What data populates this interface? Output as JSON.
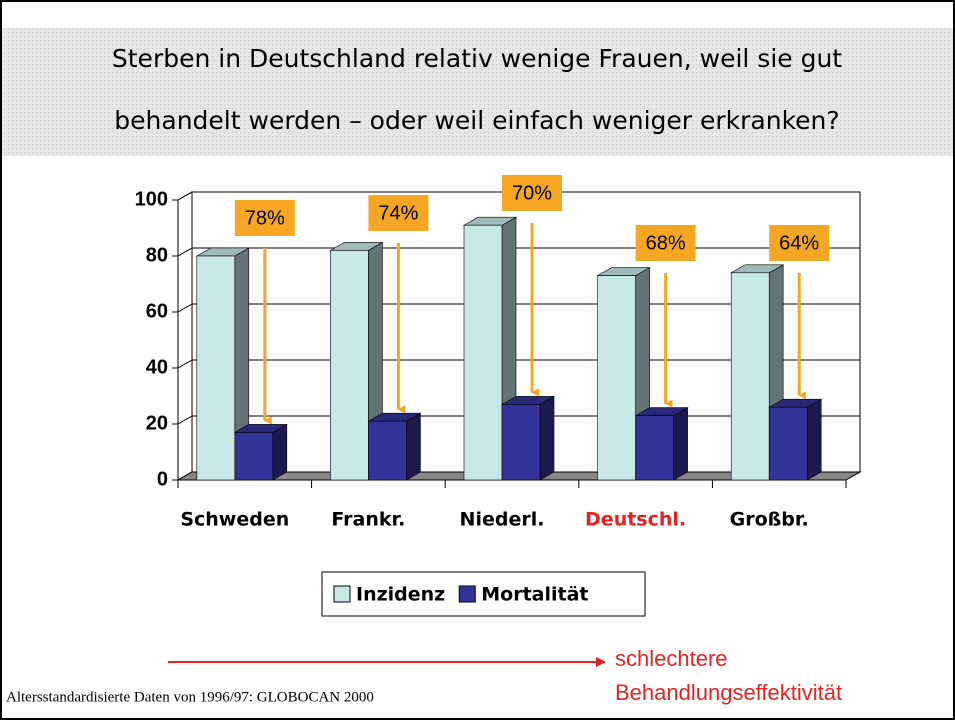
{
  "chart_data": {
    "type": "bar3d",
    "title_lines": [
      "Sterben in Deutschland relativ wenige Frauen, weil sie gut",
      "behandelt werden – oder weil einfach weniger erkranken?"
    ],
    "categories": [
      "Schweden",
      "Frankr.",
      "Niederl.",
      "Deutschl.",
      "Großbr."
    ],
    "highlight_index": 3,
    "highlight_color": "#e52222",
    "series": [
      {
        "name": "Inzidenz",
        "color": "#c8e8e8",
        "values": [
          80,
          82,
          91,
          73,
          74
        ]
      },
      {
        "name": "Mortalität",
        "color": "#333399",
        "values": [
          17,
          21,
          27,
          23,
          26
        ]
      }
    ],
    "annotations": [
      "78%",
      "74%",
      "70%",
      "68%",
      "64%"
    ],
    "ylim": [
      0,
      100
    ],
    "yticks": [
      0,
      20,
      40,
      60,
      80,
      100
    ],
    "grid": true,
    "arrow_text": [
      "schlechtere",
      "Behandlungseffektivität"
    ],
    "source": "Altersstandardisierte Daten von 1996/97: GLOBOCAN 2000"
  }
}
